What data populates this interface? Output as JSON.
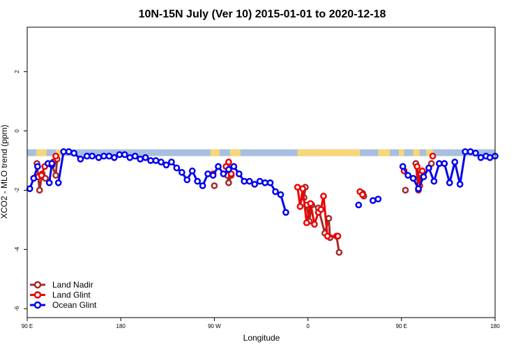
{
  "chart_data": {
    "type": "line",
    "title": "10N-15N July (Ver 10)   2015-01-01 to 2020-12-18",
    "xlabel": "Longitude",
    "ylabel": "XCO2 - MLO trend (ppm)",
    "xlim": [
      -90,
      270
    ],
    "ylim": [
      -6.3,
      3.5
    ],
    "xticks": [
      {
        "value": -90,
        "label": "90 E"
      },
      {
        "value": -18,
        "label": "180"
      },
      {
        "value": 54,
        "label": "90 W"
      },
      {
        "value": 126,
        "label": "0"
      },
      {
        "value": 198,
        "label": "90 E"
      },
      {
        "value": 270,
        "label": "180"
      }
    ],
    "yticks": [
      {
        "value": 2,
        "label": "2"
      },
      {
        "value": 0,
        "label": "0"
      },
      {
        "value": -2,
        "label": "-2"
      },
      {
        "value": -4,
        "label": "-4"
      },
      {
        "value": -6,
        "label": "-6"
      }
    ],
    "legend_position": "bottom-left",
    "band": {
      "ymin": -0.85,
      "ymax": -0.62,
      "ocean_color": "#a8bfe0",
      "land_color": "#f7d77a"
    },
    "land_spans": [
      [
        -83,
        -75
      ],
      [
        -68,
        -61
      ],
      [
        51,
        58
      ],
      [
        66,
        74
      ],
      [
        118,
        125
      ],
      [
        125,
        128
      ],
      [
        128,
        137
      ],
      [
        137,
        150
      ],
      [
        150,
        166
      ],
      [
        180,
        189
      ],
      [
        196,
        200
      ],
      [
        207,
        212
      ],
      [
        217,
        222
      ]
    ],
    "series": [
      {
        "name": "Land Nadir",
        "color": "#a52a2a",
        "segments": [
          [
            [
              -82.5,
              -1.1
            ],
            [
              -80.5,
              -2.0
            ],
            [
              -78.5,
              -1.45
            ],
            [
              -76,
              -1.6
            ]
          ],
          [
            [
              -71,
              -1.15
            ],
            [
              -68,
              -1.5
            ],
            [
              -67,
              -0.95
            ]
          ],
          [
            [
              54,
              -1.85
            ]
          ],
          [
            [
              64,
              -1.5
            ],
            [
              65,
              -1.75
            ],
            [
              67,
              -1.5
            ]
          ],
          [
            [
              201,
              -2.0
            ]
          ],
          [
            [
              209,
              -1.1
            ],
            [
              211,
              -2.0
            ],
            [
              213,
              -1.45
            ]
          ],
          [
            [
              221,
              -1.1
            ]
          ],
          [
            [
              125,
              -2.5
            ],
            [
              127,
              -3.05
            ],
            [
              129,
              -2.5
            ],
            [
              134,
              -2.6
            ],
            [
              139,
              -3.45
            ],
            [
              142,
              -2.95
            ],
            [
              143,
              -3.6
            ],
            [
              148,
              -3.55
            ],
            [
              150,
              -4.1
            ]
          ],
          [
            [
              123,
              -2.25
            ],
            [
              124,
              -1.9
            ]
          ],
          [
            [
              168,
              -2.1
            ],
            [
              169,
              -2.2
            ]
          ]
        ]
      },
      {
        "name": "Land Glint",
        "color": "#ee0000",
        "segments": [
          [
            [
              -81.5,
              -1.55
            ],
            [
              -79,
              -1.5
            ],
            [
              -76.5,
              -1.2
            ]
          ],
          [
            [
              -70,
              -1.05
            ],
            [
              -68,
              -0.85
            ]
          ],
          [
            [
              53,
              -1.45
            ]
          ],
          [
            [
              63,
              -1.2
            ],
            [
              65,
              -1.05
            ],
            [
              67,
              -1.45
            ]
          ],
          [
            [
              200,
              -1.35
            ]
          ],
          [
            [
              210,
              -1.2
            ],
            [
              212,
              -1.85
            ],
            [
              214,
              -1.35
            ]
          ],
          [
            [
              222,
              -0.85
            ]
          ],
          [
            [
              118,
              -1.9
            ],
            [
              120,
              -2.55
            ],
            [
              122,
              -1.95
            ],
            [
              125,
              -3.1
            ],
            [
              128,
              -2.45
            ],
            [
              131,
              -3.15
            ],
            [
              134,
              -2.75
            ],
            [
              136,
              -2.65
            ],
            [
              138,
              -2.2
            ],
            [
              141,
              -3.55
            ],
            [
              149,
              -3.55
            ]
          ],
          [
            [
              166,
              -2.05
            ],
            [
              168,
              -2.15
            ]
          ]
        ]
      },
      {
        "name": "Ocean Glint",
        "color": "#0000ee",
        "segments": [
          [
            [
              -88,
              -1.95
            ],
            [
              -85,
              -1.6
            ],
            [
              -82,
              -1.2
            ]
          ],
          [
            [
              -74,
              -1.1
            ],
            [
              -71,
              -1.15
            ]
          ],
          [
            [
              -66,
              -1.75
            ],
            [
              -62,
              -0.7
            ],
            [
              -58,
              -0.7
            ],
            [
              -54,
              -0.75
            ],
            [
              -49,
              -0.95
            ],
            [
              -44,
              -0.85
            ],
            [
              -40,
              -0.85
            ],
            [
              -35,
              -0.9
            ],
            [
              -31,
              -0.85
            ],
            [
              -27,
              -0.85
            ],
            [
              -23,
              -0.9
            ],
            [
              -19,
              -0.8
            ],
            [
              -15,
              -0.8
            ],
            [
              -11,
              -0.9
            ],
            [
              -7,
              -0.85
            ],
            [
              -3,
              -0.95
            ],
            [
              1,
              -0.9
            ],
            [
              5,
              -1.0
            ],
            [
              9,
              -1.0
            ],
            [
              13,
              -1.05
            ],
            [
              17,
              -1.15
            ],
            [
              21,
              -1.05
            ],
            [
              25,
              -1.25
            ],
            [
              29,
              -1.4
            ],
            [
              33,
              -1.65
            ],
            [
              37,
              -1.35
            ],
            [
              41,
              -1.7
            ],
            [
              45,
              -1.85
            ],
            [
              49,
              -1.45
            ],
            [
              53,
              -1.5
            ],
            [
              57,
              -1.2
            ],
            [
              61,
              -1.45
            ],
            [
              65,
              -1.3
            ],
            [
              69,
              -1.2
            ],
            [
              73,
              -1.45
            ],
            [
              77,
              -1.7
            ],
            [
              81,
              -1.7
            ],
            [
              85,
              -1.8
            ],
            [
              89,
              -1.7
            ],
            [
              93,
              -1.75
            ],
            [
              97,
              -1.75
            ],
            [
              101,
              -2.05
            ],
            [
              105,
              -2.15
            ],
            [
              109,
              -2.75
            ]
          ],
          [
            [
              165,
              -2.5
            ]
          ],
          [
            [
              176,
              -2.35
            ],
            [
              180,
              -2.3
            ]
          ],
          [
            [
              199,
              -1.2
            ],
            [
              203,
              -1.5
            ],
            [
              207,
              -1.6
            ],
            [
              211,
              -1.95
            ],
            [
              215,
              -1.55
            ],
            [
              219,
              -1.25
            ],
            [
              223,
              -1.7
            ],
            [
              227,
              -1.1
            ],
            [
              231,
              -1.1
            ],
            [
              235,
              -1.75
            ],
            [
              239,
              -1.05
            ],
            [
              243,
              -1.8
            ],
            [
              247,
              -0.7
            ],
            [
              251,
              -0.7
            ],
            [
              255,
              -0.75
            ],
            [
              259,
              -0.9
            ],
            [
              263,
              -0.85
            ],
            [
              266,
              -0.9
            ],
            [
              270,
              -0.85
            ]
          ],
          [
            [
              -73,
              -1.75
            ],
            [
              -71,
              -1.1
            ]
          ]
        ]
      }
    ]
  }
}
